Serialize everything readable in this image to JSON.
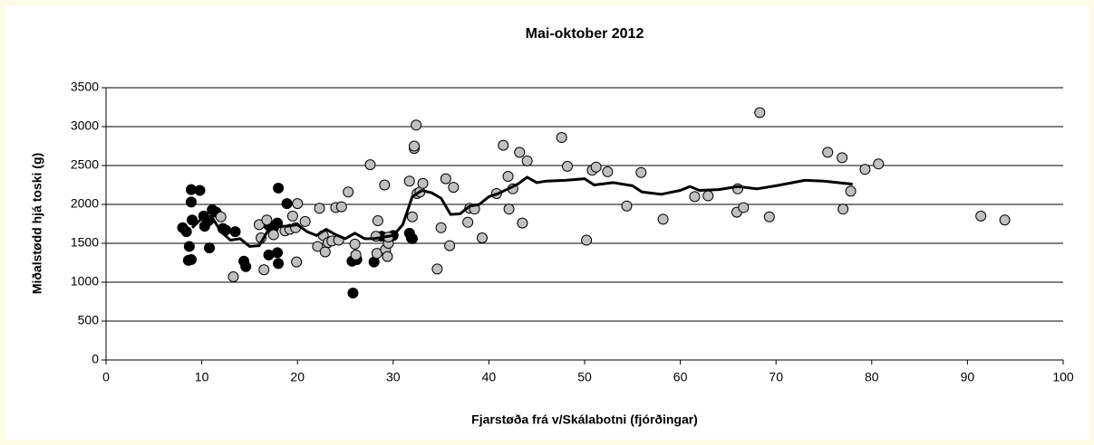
{
  "chart_data": {
    "type": "scatter",
    "title": "Mai-oktober 2012",
    "xlabel": "Fjarstøða frá v/Skálabotni (fjórðingar)",
    "ylabel": "Miðalstødd hjá toski (g)",
    "xlim": [
      0,
      100
    ],
    "xticks": [
      0,
      10,
      20,
      30,
      40,
      50,
      60,
      70,
      80,
      90,
      100
    ],
    "ylim": [
      0,
      3500
    ],
    "yticks": [
      0,
      500,
      1000,
      1500,
      2000,
      2500,
      3000,
      3500
    ],
    "grid": true,
    "series": [
      {
        "kind": "marker",
        "color": "#000000",
        "x": [
          8.0,
          8.4,
          8.7,
          8.6,
          8.9,
          8.9,
          8.9,
          9.0,
          9.8,
          10.2,
          10.3,
          10.7,
          10.8,
          11.1,
          11.5,
          12.2,
          12.5,
          13.5,
          14.4,
          14.6,
          17.0,
          17.0,
          17.5,
          17.9,
          17.9,
          18.0,
          18.0,
          18.9,
          25.7,
          25.8,
          26.2,
          28.0,
          28.8,
          30.0,
          31.7,
          31.9,
          32.0
        ],
        "values": [
          1700,
          1650,
          1460,
          1280,
          1290,
          2190,
          2030,
          1800,
          2180,
          1850,
          1720,
          1790,
          1440,
          1930,
          1900,
          1690,
          1670,
          1650,
          1270,
          1200,
          1350,
          1730,
          1700,
          1760,
          1380,
          1240,
          2210,
          2010,
          1270,
          860,
          1290,
          1260,
          1590,
          1600,
          1630,
          1570,
          1560
        ]
      },
      {
        "kind": "marker",
        "color": "#c0c0c0",
        "x": [
          12.0,
          13.3,
          16.0,
          16.2,
          16.5,
          16.8,
          17.5,
          18.7,
          19.2,
          19.5,
          19.8,
          19.9,
          20.0,
          20.8,
          22.1,
          22.3,
          22.7,
          22.9,
          23.2,
          23.6,
          24.0,
          24.3,
          24.6,
          25.3,
          26.0,
          26.1,
          27.6,
          28.2,
          28.3,
          28.4,
          29.1,
          29.2,
          29.4,
          29.5,
          29.5,
          31.7,
          32.0,
          32.2,
          32.2,
          32.4,
          32.5,
          32.8,
          33.1,
          34.6,
          35.0,
          35.5,
          35.9,
          36.3,
          37.8,
          38.0,
          38.5,
          39.3,
          40.8,
          41.5,
          42.0,
          42.1,
          42.5,
          43.2,
          43.5,
          44.0,
          47.6,
          48.2,
          50.2,
          50.8,
          51.2,
          52.4,
          54.4,
          55.9,
          58.2,
          61.5,
          62.9,
          65.9,
          66.0,
          66.6,
          68.3,
          69.3,
          75.4,
          76.9,
          77.0,
          77.8,
          79.3,
          80.7,
          91.4,
          93.9
        ],
        "values": [
          1840,
          1070,
          1740,
          1570,
          1160,
          1800,
          1610,
          1660,
          1680,
          1850,
          1700,
          1260,
          2010,
          1780,
          1460,
          1950,
          1600,
          1390,
          1510,
          1530,
          1960,
          1540,
          1970,
          2160,
          1490,
          1350,
          2510,
          1590,
          1370,
          1790,
          2250,
          1420,
          1330,
          1500,
          1580,
          2300,
          1840,
          2720,
          2750,
          3020,
          2140,
          2160,
          2270,
          1170,
          1700,
          2330,
          1470,
          2220,
          1770,
          1950,
          1940,
          1570,
          2140,
          2760,
          2360,
          1940,
          2200,
          2670,
          1760,
          2560,
          2860,
          2490,
          1540,
          2440,
          2480,
          2420,
          1980,
          2410,
          1810,
          2100,
          2110,
          1900,
          2200,
          1960,
          3180,
          1840,
          2670,
          2600,
          1940,
          2170,
          2450,
          2520,
          1850,
          1800
        ]
      },
      {
        "kind": "line",
        "color": "#000000",
        "x": [
          9,
          10,
          11,
          12,
          13,
          14,
          15,
          16,
          17,
          18,
          19,
          20,
          21,
          22,
          23,
          24,
          25,
          26,
          27,
          28,
          29,
          30,
          31,
          32,
          33,
          34,
          35,
          36,
          37,
          38,
          39,
          40,
          41,
          42,
          43,
          44,
          45,
          46,
          48,
          50,
          51,
          53,
          55,
          56,
          58,
          60,
          61,
          62,
          64,
          66,
          68,
          70,
          73,
          75,
          78
        ],
        "values": [
          1700,
          1820,
          1850,
          1650,
          1540,
          1560,
          1460,
          1470,
          1680,
          1720,
          1720,
          1740,
          1650,
          1600,
          1680,
          1610,
          1560,
          1630,
          1560,
          1560,
          1580,
          1600,
          1740,
          2100,
          2180,
          2150,
          2080,
          1870,
          1880,
          1980,
          2000,
          2100,
          2140,
          2200,
          2260,
          2350,
          2280,
          2300,
          2310,
          2330,
          2250,
          2280,
          2240,
          2160,
          2130,
          2180,
          2230,
          2180,
          2190,
          2230,
          2200,
          2240,
          2310,
          2300,
          2260
        ]
      }
    ]
  }
}
